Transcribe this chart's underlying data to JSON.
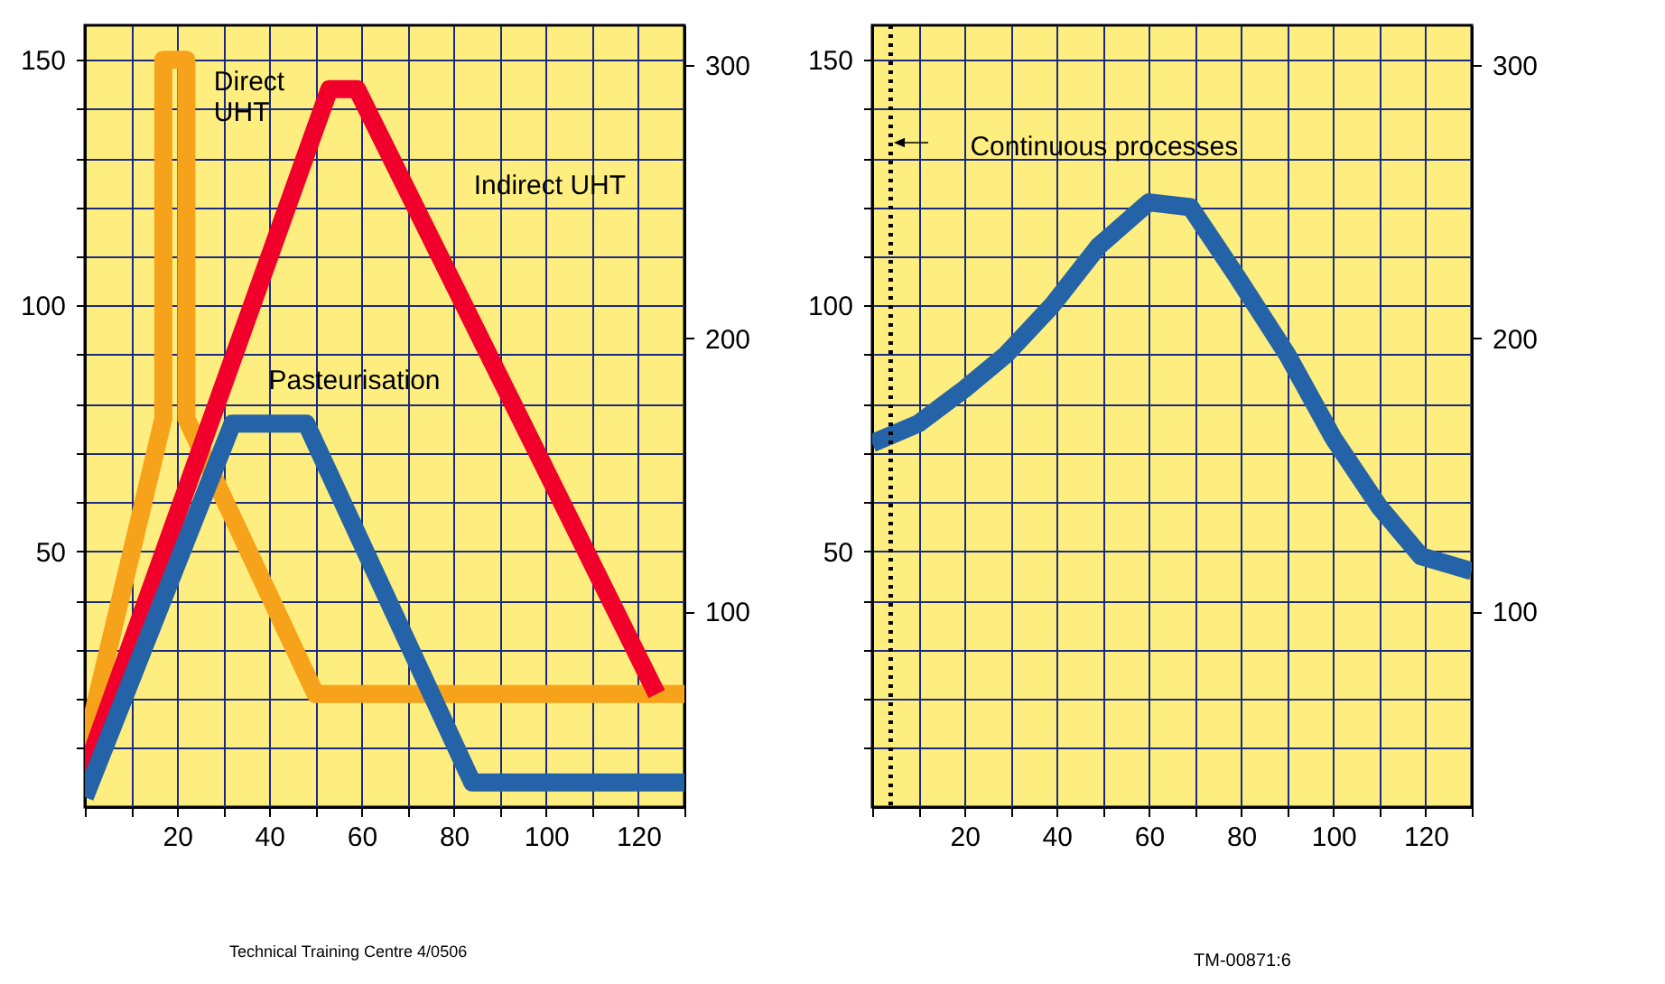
{
  "chart_data": [
    {
      "type": "line",
      "xlim": [
        0,
        130
      ],
      "xticks": [
        {
          "value": 0,
          "label": null
        },
        {
          "value": 10,
          "label": null
        },
        20,
        {
          "value": 30,
          "label": null
        },
        40,
        {
          "value": 50,
          "label": null
        },
        60,
        {
          "value": 70,
          "label": null
        },
        80,
        {
          "value": 90,
          "label": null
        },
        100,
        {
          "value": 110,
          "label": null
        },
        120,
        {
          "value": 130,
          "label": null
        }
      ],
      "ylim": [
        -2,
        157
      ],
      "yticks": [
        {
          "value": 10,
          "label": null
        },
        {
          "value": 20,
          "label": null
        },
        {
          "value": 30,
          "label": null
        },
        {
          "value": 40,
          "label": null
        },
        50,
        {
          "value": 60,
          "label": null
        },
        {
          "value": 70,
          "label": null
        },
        {
          "value": 80,
          "label": null
        },
        {
          "value": 90,
          "label": null
        },
        100,
        {
          "value": 110,
          "label": null
        },
        {
          "value": 120,
          "label": null
        },
        {
          "value": 130,
          "label": null
        },
        {
          "value": 140,
          "label": null
        },
        150
      ],
      "y2lim": [
        28.4,
        314.6
      ],
      "y2ticks": [
        100,
        200,
        300
      ],
      "grid": true,
      "series": [
        {
          "name": "Direct UHT",
          "color": "#f7a21b",
          "x": [
            0,
            17,
            17,
            22,
            22,
            50,
            130
          ],
          "values": [
            10,
            77,
            150,
            150,
            77,
            21,
            21
          ]
        },
        {
          "name": "Indirect UHT",
          "color": "#f0002a",
          "x": [
            0,
            53,
            59,
            124
          ],
          "values": [
            5,
            144,
            144,
            21
          ]
        },
        {
          "name": "Pasteurisation",
          "color": "#2563a8",
          "x": [
            0,
            32,
            48,
            84,
            130
          ],
          "values": [
            0,
            76,
            76,
            3,
            3
          ]
        }
      ],
      "annotations": [
        "Technical Training Centre 4/0506"
      ]
    },
    {
      "type": "line",
      "xlim": [
        0,
        130
      ],
      "xticks": [
        {
          "value": 0,
          "label": null
        },
        {
          "value": 10,
          "label": null
        },
        20,
        {
          "value": 30,
          "label": null
        },
        40,
        {
          "value": 50,
          "label": null
        },
        60,
        {
          "value": 70,
          "label": null
        },
        80,
        {
          "value": 90,
          "label": null
        },
        100,
        {
          "value": 110,
          "label": null
        },
        120,
        {
          "value": 130,
          "label": null
        }
      ],
      "ylim": [
        -2,
        157
      ],
      "yticks": [
        {
          "value": 10,
          "label": null
        },
        {
          "value": 20,
          "label": null
        },
        {
          "value": 30,
          "label": null
        },
        {
          "value": 40,
          "label": null
        },
        50,
        {
          "value": 60,
          "label": null
        },
        {
          "value": 70,
          "label": null
        },
        {
          "value": 80,
          "label": null
        },
        {
          "value": 90,
          "label": null
        },
        100,
        {
          "value": 110,
          "label": null
        },
        {
          "value": 120,
          "label": null
        },
        {
          "value": 130,
          "label": null
        },
        {
          "value": 140,
          "label": null
        },
        150
      ],
      "y2lim": [
        28.4,
        314.6
      ],
      "y2ticks": [
        100,
        200,
        300
      ],
      "grid": true,
      "series": [
        {
          "color": "#2563a8",
          "x": [
            0,
            10,
            20,
            29,
            39,
            49,
            60,
            69,
            79,
            90,
            100,
            110,
            119,
            130
          ],
          "values": [
            72,
            76,
            83,
            90,
            100,
            112,
            121,
            120,
            106,
            90,
            73,
            59,
            49,
            46
          ]
        }
      ],
      "ref_lines": [
        {
          "axis": "x",
          "value": 4,
          "label": "Continuous processes",
          "line_style": "dotted",
          "color": "#000000"
        }
      ],
      "annotations": [
        "TM-00871:6"
      ]
    }
  ]
}
